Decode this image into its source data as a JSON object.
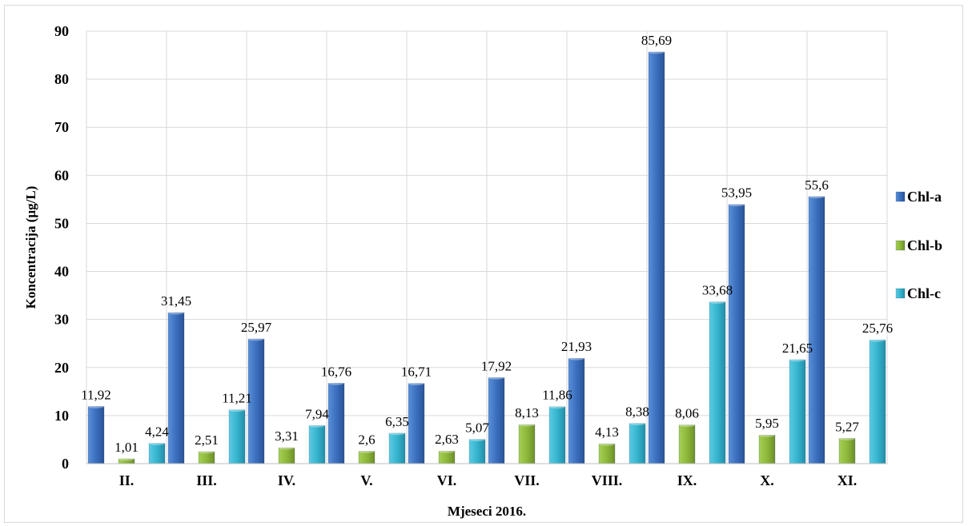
{
  "chart_data": {
    "type": "bar",
    "xlabel": "Mjeseci 2016.",
    "ylabel": "Koncentracija  (µg/L)",
    "ylim": [
      0,
      90
    ],
    "yticks": [
      0,
      10,
      20,
      30,
      40,
      50,
      60,
      70,
      80,
      90
    ],
    "grid": true,
    "legend_position": "right",
    "categories": [
      "II.",
      "III.",
      "IV.",
      "V.",
      "VI.",
      "VII.",
      "VIII.",
      "IX.",
      "X.",
      "XI."
    ],
    "series": [
      {
        "name": "Chl-a",
        "color": "#3a6fbf",
        "values": [
          11.92,
          31.45,
          25.97,
          16.76,
          16.71,
          17.92,
          21.93,
          85.69,
          53.95,
          55.6
        ],
        "labels": [
          "11,92",
          "31,45",
          "25,97",
          "16,76",
          "16,71",
          "17,92",
          "21,93",
          "85,69",
          "53,95",
          "55,6"
        ]
      },
      {
        "name": "Chl-b",
        "color": "#8db83a",
        "values": [
          1.01,
          2.51,
          3.31,
          2.6,
          2.63,
          8.13,
          4.13,
          8.06,
          5.95,
          5.27
        ],
        "labels": [
          "1,01",
          "2,51",
          "3,31",
          "2,6",
          "2,63",
          "8,13",
          "4,13",
          "8,06",
          "5,95",
          "5,27"
        ]
      },
      {
        "name": "Chl-c",
        "color": "#35b4cf",
        "values": [
          4.24,
          11.21,
          7.94,
          6.35,
          5.07,
          11.86,
          8.38,
          33.68,
          21.65,
          25.76
        ],
        "labels": [
          "4,24",
          "11,21",
          "7,94",
          "6,35",
          "5,07",
          "11,86",
          "8,38",
          "33,68",
          "21,65",
          "25,76"
        ]
      }
    ]
  }
}
